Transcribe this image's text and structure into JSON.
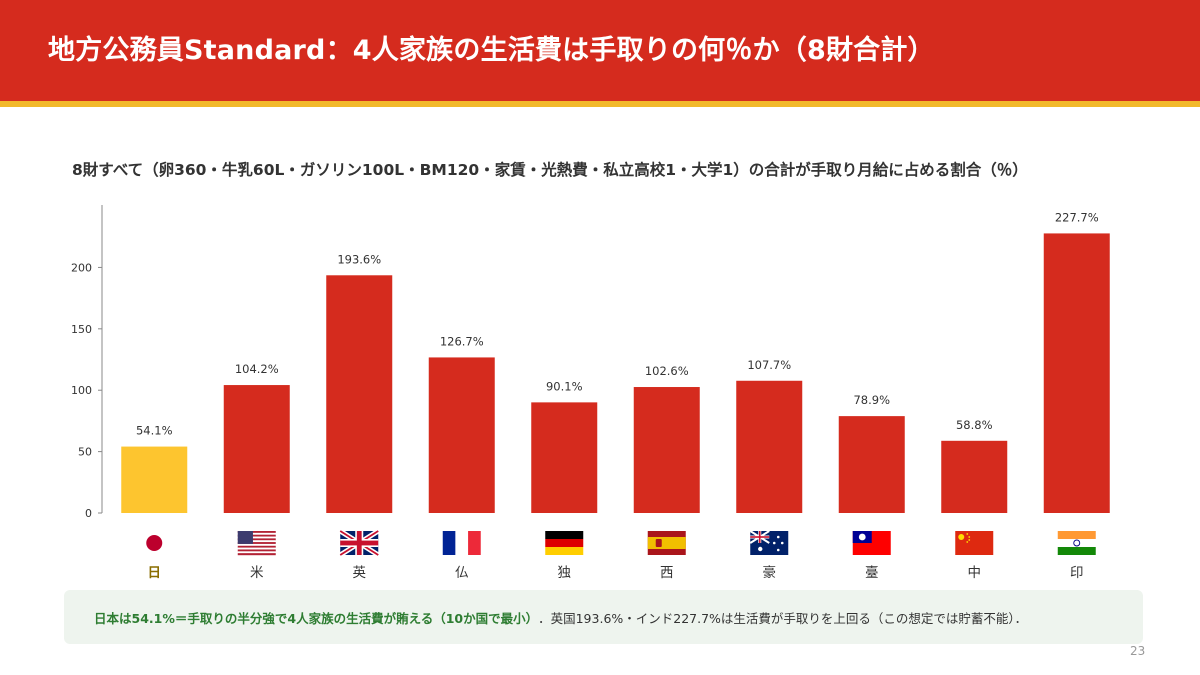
{
  "header": {
    "title": "地方公務員Standard：4人家族の生活費は手取りの何％か（8財合計）"
  },
  "subtitle": "8財すべて（卵360・牛乳60L・ガソリン100L・BM120・家賃・光熱費・私立高校1・大学1）の合計が手取り月給に占める割合（％）",
  "colors": {
    "header_red": "#d52b1e",
    "header_stripe": "#f2b92b",
    "bar_red": "#d52b1e",
    "bar_highlight": "#fdc52f",
    "highlight_label": "#8a6d00",
    "note_green": "#2e7d32",
    "note_bg": "#eef4ee"
  },
  "chart_data": {
    "type": "bar",
    "categories": [
      "日",
      "米",
      "英",
      "仏",
      "独",
      "西",
      "豪",
      "臺",
      "中",
      "印"
    ],
    "flags": [
      "japan-flag-icon",
      "usa-flag-icon",
      "uk-flag-icon",
      "france-flag-icon",
      "germany-flag-icon",
      "spain-flag-icon",
      "australia-flag-icon",
      "taiwan-flag-icon",
      "china-flag-icon",
      "india-flag-icon"
    ],
    "values": [
      54.1,
      104.2,
      193.6,
      126.7,
      90.1,
      102.6,
      107.7,
      78.9,
      58.8,
      227.7
    ],
    "data_labels": [
      "54.1%",
      "104.2%",
      "193.6%",
      "126.7%",
      "90.1%",
      "102.6%",
      "107.7%",
      "78.9%",
      "58.8%",
      "227.7%"
    ],
    "highlight_index": 0,
    "yticks": [
      0,
      50,
      100,
      150,
      200
    ],
    "ylim": [
      0,
      237
    ],
    "grid": false,
    "legend": "none"
  },
  "footnote": {
    "highlight": "日本は54.1%＝手取りの半分強で4人家族の生活費が賄える（10か国で最小）",
    "separator": "．",
    "text": "英国193.6%・インド227.7%は生活費が手取りを上回る（この想定では貯蓄不能）．"
  },
  "page_number": "23"
}
